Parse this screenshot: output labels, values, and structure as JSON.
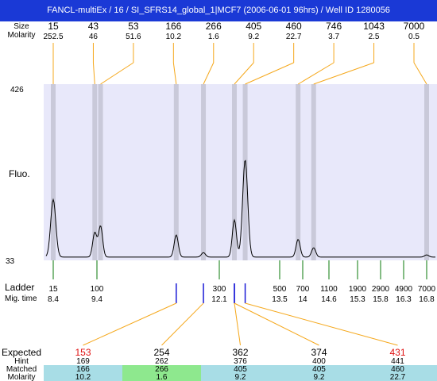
{
  "title": "FANCL-multiEx / 16 / SI_SFRS14_global_1|MCF7 (2006-06-01 96hrs) / Well ID 1280056",
  "header": {
    "size_label": "Size",
    "molarity_label": "Molarity"
  },
  "fluo_label": "Fluo.",
  "ladder": {
    "ladder_label": "Ladder",
    "migtime_label": "Mig. time"
  },
  "table": {
    "expected_label": "Expected",
    "hint_label": "Hint",
    "matched_label": "Matched",
    "molarity_label": "Molarity"
  },
  "colors": {
    "plot_bg": "#e8e8fa",
    "band": "#c9c9d9",
    "orange": "#f5a81c",
    "green_line": "#0a7a0a",
    "blue_mark": "#1a1ad6",
    "red": "#e01010",
    "cell_blue": "#a8dde6",
    "cell_green": "#8ee88e",
    "title_bg": "#1a39d6"
  },
  "chart_data": {
    "type": "line",
    "title": "",
    "xlabel": "Mig. time",
    "ylabel": "Fluo.",
    "ylim": [
      33,
      426
    ],
    "y_ticks": [
      "426",
      "33"
    ],
    "peaks": [
      {
        "size": "15",
        "molarity": "252.5",
        "time": 8.4,
        "height": 130
      },
      {
        "size": "43",
        "molarity": "46",
        "time": 9.35,
        "height": 55
      },
      {
        "size": "53",
        "molarity": "51.6",
        "time": 9.48,
        "height": 70
      },
      {
        "size": "166",
        "molarity": "10.2",
        "time": 11.15,
        "height": 50
      },
      {
        "size": "266",
        "molarity": "1.6",
        "time": 11.75,
        "height": 10
      },
      {
        "size": "405",
        "molarity": "9.2",
        "time": 12.45,
        "height": 84
      },
      {
        "size": "460",
        "molarity": "22.7",
        "time": 12.7,
        "height": 220
      },
      {
        "size": "746",
        "molarity": "3.7",
        "time": 13.9,
        "height": 40
      },
      {
        "size": "1043",
        "molarity": "2.5",
        "time": 14.25,
        "height": 21
      },
      {
        "size": "7000",
        "molarity": "0.5",
        "time": 16.8,
        "height": 5
      }
    ],
    "ladder": [
      {
        "size": "15",
        "time": "8.4"
      },
      {
        "size": "100",
        "time": "9.4"
      },
      {
        "size": "300",
        "time": "12.1"
      },
      {
        "size": "500",
        "time": "13.5"
      },
      {
        "size": "700",
        "time": "14"
      },
      {
        "size": "1100",
        "time": "14.6"
      },
      {
        "size": "1900",
        "time": "15.3"
      },
      {
        "size": "2900",
        "time": "15.8"
      },
      {
        "size": "4900",
        "time": "16.3"
      },
      {
        "size": "7000",
        "time": "16.8"
      }
    ],
    "expected": [
      {
        "expected": "153",
        "hint": "169",
        "matched": "166",
        "molarity": "10.2",
        "red": true,
        "cell": "blue",
        "time": 11.15
      },
      {
        "expected": "254",
        "hint": "262",
        "matched": "266",
        "molarity": "1.6",
        "red": false,
        "cell": "green",
        "time": 11.75
      },
      {
        "expected": "362",
        "hint": "376",
        "matched": "405",
        "molarity": "9.2",
        "red": false,
        "cell": "blue",
        "time": 12.45
      },
      {
        "expected": "374",
        "hint": "400",
        "matched": "405",
        "molarity": "9.2",
        "red": false,
        "cell": "blue",
        "time": 12.45
      },
      {
        "expected": "431",
        "hint": "441",
        "matched": "460",
        "molarity": "22.7",
        "red": true,
        "cell": "blue",
        "time": 12.7
      }
    ]
  }
}
